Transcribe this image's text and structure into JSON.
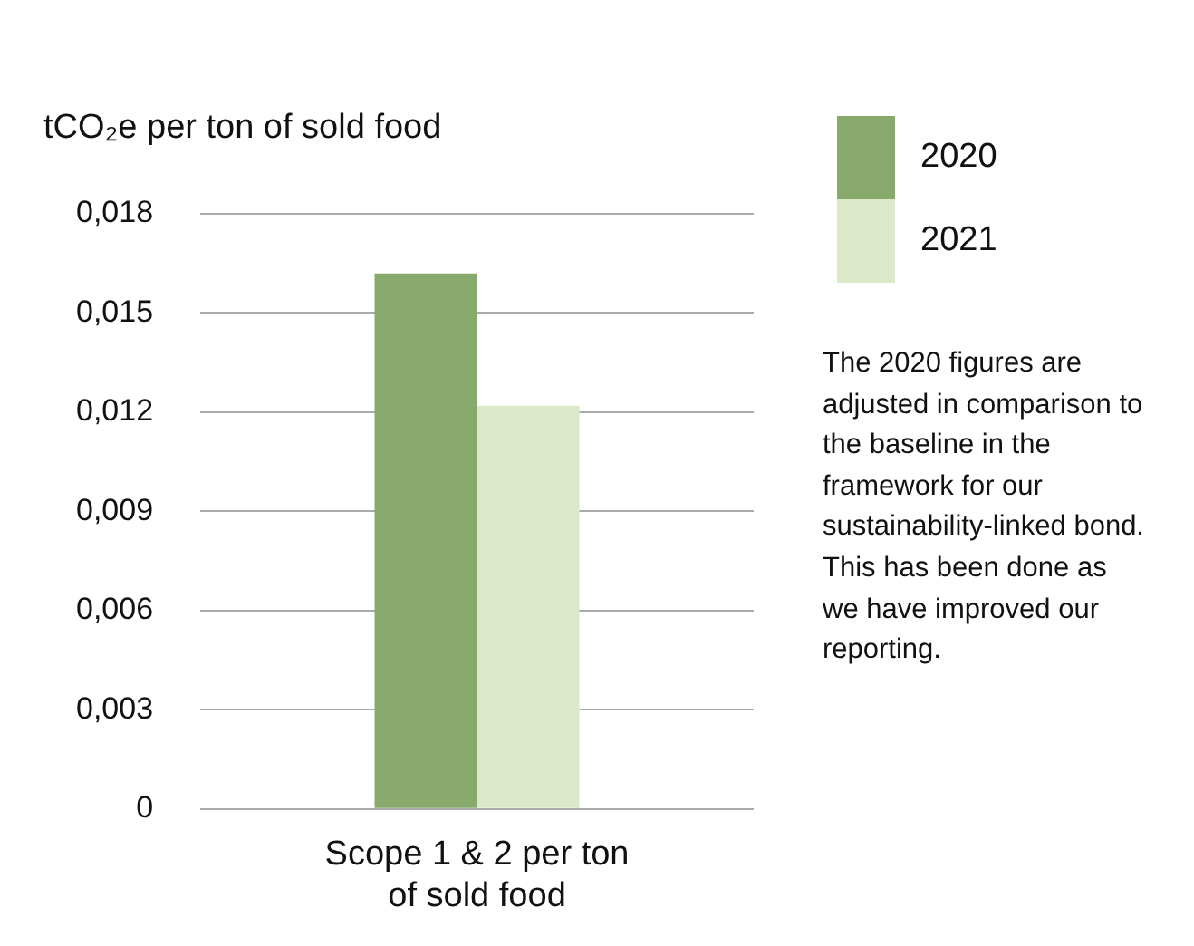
{
  "chart_data": {
    "type": "bar",
    "ylabel": "tCO₂e per ton of sold food",
    "categories": [
      "Scope 1 & 2 per ton of sold food"
    ],
    "series": [
      {
        "name": "2020",
        "color": "#87a96b",
        "values": [
          0.0162
        ]
      },
      {
        "name": "2021",
        "color": "#dce9c9",
        "values": [
          0.0122
        ]
      }
    ],
    "ylim": [
      0,
      0.018
    ],
    "yticks": [
      {
        "value": 0,
        "label": "0"
      },
      {
        "value": 0.003,
        "label": "0,003"
      },
      {
        "value": 0.006,
        "label": "0,006"
      },
      {
        "value": 0.009,
        "label": "0,009"
      },
      {
        "value": 0.012,
        "label": "0,012"
      },
      {
        "value": 0.015,
        "label": "0,015"
      },
      {
        "value": 0.018,
        "label": "0,018"
      }
    ],
    "grid": "y",
    "legend": "top right",
    "annotations": [
      "The 2020 figures are adjusted in comparison to the baseline in the framework for our sustainability-linked bond. This has been done as we have improved our reporting."
    ]
  }
}
